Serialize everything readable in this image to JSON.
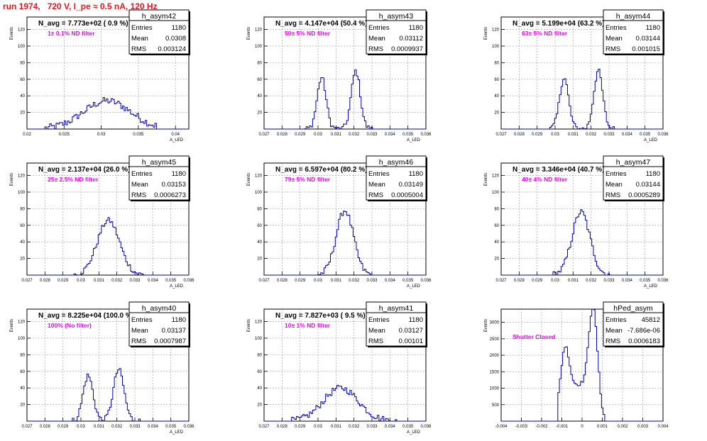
{
  "canvas_title": "run 1974,   720 V, I_pe ≈ 0.5 nA, 120 Hz",
  "colors": {
    "title": "#e8141e",
    "annotation": "#ee00ee",
    "histogram": "#0000aa",
    "text": "#000000"
  },
  "ylabel": "Events",
  "chart_data": [
    {
      "type": "histogram",
      "name": "h_asym42",
      "title": "N_avg = 7.773e+02 ( 0.9 %)",
      "annotation": "1± 0.1% ND filter",
      "xlabel": "A_LED",
      "stats": [
        {
          "label": "Entries",
          "value": "1180"
        },
        {
          "label": "Mean",
          "value": "0.0308"
        },
        {
          "label": "RMS",
          "value": "0.003124"
        }
      ],
      "xlim": [
        0.02,
        0.0418
      ],
      "ylim": [
        0,
        135
      ],
      "xticks": [
        {
          "v": 0.02,
          "t": "0.02"
        },
        {
          "v": 0.025,
          "t": "0.025"
        },
        {
          "v": 0.03,
          "t": "0.03"
        },
        {
          "v": 0.035,
          "t": "0.035"
        },
        {
          "v": 0.04,
          "t": "0.04"
        }
      ],
      "yticks": [
        {
          "v": 20,
          "t": "20"
        },
        {
          "v": 40,
          "t": "40"
        },
        {
          "v": 60,
          "t": "60"
        },
        {
          "v": 80,
          "t": "80"
        },
        {
          "v": 100,
          "t": "100"
        },
        {
          "v": 120,
          "t": "120"
        }
      ],
      "peaks": [
        {
          "m": 0.0308,
          "s": 0.0032,
          "a": 34
        }
      ],
      "range": [
        0.0225,
        0.0375
      ],
      "noise": 9
    },
    {
      "type": "histogram",
      "name": "h_asym43",
      "title": "N_avg = 4.147e+04 (50.4 %)",
      "annotation": "50± 5% ND filter",
      "xlabel": "A_LED",
      "stats": [
        {
          "label": "Entries",
          "value": "1180"
        },
        {
          "label": "Mean",
          "value": "0.03112"
        },
        {
          "label": "RMS",
          "value": "0.0009937"
        }
      ],
      "xlim": [
        0.027,
        0.036
      ],
      "ylim": [
        0,
        135
      ],
      "xticks": [
        {
          "v": 0.027,
          "t": "0.027"
        },
        {
          "v": 0.028,
          "t": "0.028"
        },
        {
          "v": 0.029,
          "t": "0.029"
        },
        {
          "v": 0.03,
          "t": "0.03"
        },
        {
          "v": 0.031,
          "t": "0.031"
        },
        {
          "v": 0.032,
          "t": "0.032"
        },
        {
          "v": 0.033,
          "t": "0.033"
        },
        {
          "v": 0.034,
          "t": "0.034"
        },
        {
          "v": 0.035,
          "t": "0.035"
        },
        {
          "v": 0.036,
          "t": "0.036"
        }
      ],
      "yticks": [
        {
          "v": 20,
          "t": "20"
        },
        {
          "v": 40,
          "t": "40"
        },
        {
          "v": 60,
          "t": "60"
        },
        {
          "v": 80,
          "t": "80"
        },
        {
          "v": 100,
          "t": "100"
        },
        {
          "v": 120,
          "t": "120"
        }
      ],
      "peaks": [
        {
          "m": 0.0302,
          "s": 0.00025,
          "a": 62
        },
        {
          "m": 0.0321,
          "s": 0.00025,
          "a": 70
        }
      ],
      "range": [
        0.0292,
        0.0332
      ],
      "noise": 7
    },
    {
      "type": "histogram",
      "name": "h_asym44",
      "title": "N_avg = 5.199e+04 (63.2 %)",
      "annotation": "63± 5% ND filter",
      "xlabel": "A_LED",
      "stats": [
        {
          "label": "Entries",
          "value": "1180"
        },
        {
          "label": "Mean",
          "value": "0.03144"
        },
        {
          "label": "RMS",
          "value": "0.001015"
        }
      ],
      "xlim": [
        0.027,
        0.036
      ],
      "ylim": [
        0,
        135
      ],
      "xticks": [
        {
          "v": 0.027,
          "t": "0.027"
        },
        {
          "v": 0.028,
          "t": "0.028"
        },
        {
          "v": 0.029,
          "t": "0.029"
        },
        {
          "v": 0.03,
          "t": "0.03"
        },
        {
          "v": 0.031,
          "t": "0.031"
        },
        {
          "v": 0.032,
          "t": "0.032"
        },
        {
          "v": 0.033,
          "t": "0.033"
        },
        {
          "v": 0.034,
          "t": "0.034"
        },
        {
          "v": 0.035,
          "t": "0.035"
        },
        {
          "v": 0.036,
          "t": "0.036"
        }
      ],
      "yticks": [
        {
          "v": 20,
          "t": "20"
        },
        {
          "v": 40,
          "t": "40"
        },
        {
          "v": 60,
          "t": "60"
        },
        {
          "v": 80,
          "t": "80"
        },
        {
          "v": 100,
          "t": "100"
        },
        {
          "v": 120,
          "t": "120"
        }
      ],
      "peaks": [
        {
          "m": 0.0305,
          "s": 0.00025,
          "a": 62
        },
        {
          "m": 0.0324,
          "s": 0.00025,
          "a": 70
        }
      ],
      "range": [
        0.0295,
        0.0335
      ],
      "noise": 7
    },
    {
      "type": "histogram",
      "name": "h_asym45",
      "title": "N_avg = 2.137e+04 (26.0 %)",
      "annotation": "25± 2.5% ND filter",
      "xlabel": "A_LED",
      "stats": [
        {
          "label": "Entries",
          "value": "1180"
        },
        {
          "label": "Mean",
          "value": "0.03153"
        },
        {
          "label": "RMS",
          "value": "0.0006273"
        }
      ],
      "xlim": [
        0.027,
        0.036
      ],
      "ylim": [
        0,
        135
      ],
      "xticks": [
        {
          "v": 0.027,
          "t": "0.027"
        },
        {
          "v": 0.028,
          "t": "0.028"
        },
        {
          "v": 0.029,
          "t": "0.029"
        },
        {
          "v": 0.03,
          "t": "0.03"
        },
        {
          "v": 0.031,
          "t": "0.031"
        },
        {
          "v": 0.032,
          "t": "0.032"
        },
        {
          "v": 0.033,
          "t": "0.033"
        },
        {
          "v": 0.034,
          "t": "0.034"
        },
        {
          "v": 0.035,
          "t": "0.035"
        },
        {
          "v": 0.036,
          "t": "0.036"
        }
      ],
      "yticks": [
        {
          "v": 20,
          "t": "20"
        },
        {
          "v": 40,
          "t": "40"
        },
        {
          "v": 60,
          "t": "60"
        },
        {
          "v": 80,
          "t": "80"
        },
        {
          "v": 100,
          "t": "100"
        },
        {
          "v": 120,
          "t": "120"
        }
      ],
      "peaks": [
        {
          "m": 0.03153,
          "s": 0.00062,
          "a": 66
        }
      ],
      "range": [
        0.0296,
        0.0335
      ],
      "noise": 7
    },
    {
      "type": "histogram",
      "name": "h_asym46",
      "title": "N_avg = 6.597e+04 (80.2 %)",
      "annotation": "79± 5% ND filter",
      "xlabel": "A_LED",
      "stats": [
        {
          "label": "Entries",
          "value": "1180"
        },
        {
          "label": "Mean",
          "value": "0.03149"
        },
        {
          "label": "RMS",
          "value": "0.0005004"
        }
      ],
      "xlim": [
        0.027,
        0.036
      ],
      "ylim": [
        0,
        135
      ],
      "xticks": [
        {
          "v": 0.027,
          "t": "0.027"
        },
        {
          "v": 0.028,
          "t": "0.028"
        },
        {
          "v": 0.029,
          "t": "0.029"
        },
        {
          "v": 0.03,
          "t": "0.03"
        },
        {
          "v": 0.031,
          "t": "0.031"
        },
        {
          "v": 0.032,
          "t": "0.032"
        },
        {
          "v": 0.033,
          "t": "0.033"
        },
        {
          "v": 0.034,
          "t": "0.034"
        },
        {
          "v": 0.035,
          "t": "0.035"
        },
        {
          "v": 0.036,
          "t": "0.036"
        }
      ],
      "yticks": [
        {
          "v": 20,
          "t": "20"
        },
        {
          "v": 40,
          "t": "40"
        },
        {
          "v": 60,
          "t": "60"
        },
        {
          "v": 80,
          "t": "80"
        },
        {
          "v": 100,
          "t": "100"
        },
        {
          "v": 120,
          "t": "120"
        }
      ],
      "peaks": [
        {
          "m": 0.03149,
          "s": 0.00048,
          "a": 78
        }
      ],
      "range": [
        0.0299,
        0.033
      ],
      "noise": 8
    },
    {
      "type": "histogram",
      "name": "h_asym47",
      "title": "N_avg = 3.346e+04 (40.7 %)",
      "annotation": "40± 4% ND filter",
      "xlabel": "A_LED",
      "stats": [
        {
          "label": "Entries",
          "value": "1180"
        },
        {
          "label": "Mean",
          "value": "0.03144"
        },
        {
          "label": "RMS",
          "value": "0.0005289"
        }
      ],
      "xlim": [
        0.027,
        0.036
      ],
      "ylim": [
        0,
        135
      ],
      "xticks": [
        {
          "v": 0.027,
          "t": "0.027"
        },
        {
          "v": 0.028,
          "t": "0.028"
        },
        {
          "v": 0.029,
          "t": "0.029"
        },
        {
          "v": 0.03,
          "t": "0.03"
        },
        {
          "v": 0.031,
          "t": "0.031"
        },
        {
          "v": 0.032,
          "t": "0.032"
        },
        {
          "v": 0.033,
          "t": "0.033"
        },
        {
          "v": 0.034,
          "t": "0.034"
        },
        {
          "v": 0.035,
          "t": "0.035"
        },
        {
          "v": 0.036,
          "t": "0.036"
        }
      ],
      "yticks": [
        {
          "v": 20,
          "t": "20"
        },
        {
          "v": 40,
          "t": "40"
        },
        {
          "v": 60,
          "t": "60"
        },
        {
          "v": 80,
          "t": "80"
        },
        {
          "v": 100,
          "t": "100"
        },
        {
          "v": 120,
          "t": "120"
        }
      ],
      "peaks": [
        {
          "m": 0.03144,
          "s": 0.0005,
          "a": 76
        }
      ],
      "range": [
        0.0299,
        0.033
      ],
      "noise": 8
    },
    {
      "type": "histogram",
      "name": "h_asym40",
      "title": "N_avg = 8.225e+04 (100.0 %)",
      "annotation": "100% (No filter)",
      "xlabel": "A_LED",
      "stats": [
        {
          "label": "Entries",
          "value": "1180"
        },
        {
          "label": "Mean",
          "value": "0.03137"
        },
        {
          "label": "RMS",
          "value": "0.0007987"
        }
      ],
      "xlim": [
        0.027,
        0.036
      ],
      "ylim": [
        0,
        135
      ],
      "xticks": [
        {
          "v": 0.027,
          "t": "0.027"
        },
        {
          "v": 0.028,
          "t": "0.028"
        },
        {
          "v": 0.029,
          "t": "0.029"
        },
        {
          "v": 0.03,
          "t": "0.03"
        },
        {
          "v": 0.031,
          "t": "0.031"
        },
        {
          "v": 0.032,
          "t": "0.032"
        },
        {
          "v": 0.033,
          "t": "0.033"
        },
        {
          "v": 0.034,
          "t": "0.034"
        },
        {
          "v": 0.035,
          "t": "0.035"
        },
        {
          "v": 0.036,
          "t": "0.036"
        }
      ],
      "yticks": [
        {
          "v": 20,
          "t": "20"
        },
        {
          "v": 40,
          "t": "40"
        },
        {
          "v": 60,
          "t": "60"
        },
        {
          "v": 80,
          "t": "80"
        },
        {
          "v": 100,
          "t": "100"
        },
        {
          "v": 120,
          "t": "120"
        }
      ],
      "peaks": [
        {
          "m": 0.0304,
          "s": 0.00028,
          "a": 55
        },
        {
          "m": 0.0321,
          "s": 0.0003,
          "a": 62
        }
      ],
      "range": [
        0.0295,
        0.0334
      ],
      "noise": 7
    },
    {
      "type": "histogram",
      "name": "h_asym41",
      "title": "N_avg = 7.827e+03 ( 9.5 %)",
      "annotation": "10± 1% ND filter",
      "xlabel": "A_LED",
      "stats": [
        {
          "label": "Entries",
          "value": "1180"
        },
        {
          "label": "Mean",
          "value": "0.03127"
        },
        {
          "label": "RMS",
          "value": "0.00101"
        }
      ],
      "xlim": [
        0.027,
        0.036
      ],
      "ylim": [
        0,
        135
      ],
      "xticks": [
        {
          "v": 0.027,
          "t": "0.027"
        },
        {
          "v": 0.028,
          "t": "0.028"
        },
        {
          "v": 0.029,
          "t": "0.029"
        },
        {
          "v": 0.03,
          "t": "0.03"
        },
        {
          "v": 0.031,
          "t": "0.031"
        },
        {
          "v": 0.032,
          "t": "0.032"
        },
        {
          "v": 0.033,
          "t": "0.033"
        },
        {
          "v": 0.034,
          "t": "0.034"
        },
        {
          "v": 0.035,
          "t": "0.035"
        },
        {
          "v": 0.036,
          "t": "0.036"
        }
      ],
      "yticks": [
        {
          "v": 20,
          "t": "20"
        },
        {
          "v": 40,
          "t": "40"
        },
        {
          "v": 60,
          "t": "60"
        },
        {
          "v": 80,
          "t": "80"
        },
        {
          "v": 100,
          "t": "100"
        },
        {
          "v": 120,
          "t": "120"
        }
      ],
      "peaks": [
        {
          "m": 0.03127,
          "s": 0.00098,
          "a": 40
        }
      ],
      "range": [
        0.0283,
        0.0344
      ],
      "noise": 8
    },
    {
      "type": "histogram",
      "name": "hPed_asym",
      "title": "",
      "annotation": "Shutter Closed",
      "xlabel": "",
      "stats": [
        {
          "label": "Entries",
          "value": "45812"
        },
        {
          "label": "Mean",
          "value": "-7.686e-06"
        },
        {
          "label": "RMS",
          "value": "0.0006183"
        }
      ],
      "xlim": [
        -0.004,
        0.004
      ],
      "ylim": [
        0,
        3400
      ],
      "xticks": [
        {
          "v": -0.004,
          "t": "-0.004"
        },
        {
          "v": -0.003,
          "t": "-0.003"
        },
        {
          "v": -0.002,
          "t": "-0.002"
        },
        {
          "v": -0.001,
          "t": "-0.001"
        },
        {
          "v": 0,
          "t": "0"
        },
        {
          "v": 0.001,
          "t": "0.001"
        },
        {
          "v": 0.002,
          "t": "0.002"
        },
        {
          "v": 0.003,
          "t": "0.003"
        },
        {
          "v": 0.004,
          "t": "0.004"
        }
      ],
      "yticks": [
        {
          "v": 500,
          "t": "500"
        },
        {
          "v": 1000,
          "t": "1000"
        },
        {
          "v": 1500,
          "t": "1500"
        },
        {
          "v": 2000,
          "t": "2000"
        },
        {
          "v": 2500,
          "t": "2500"
        },
        {
          "v": 3000,
          "t": "3000"
        }
      ],
      "peaks": [
        {
          "m": -0.00085,
          "s": 0.00022,
          "a": 1850
        },
        {
          "m": 0.00055,
          "s": 0.00022,
          "a": 3050
        },
        {
          "m": -0.00015,
          "s": 0.0005,
          "a": 1100
        }
      ],
      "range": [
        -0.0012,
        0.0011
      ],
      "noise": 120
    }
  ]
}
